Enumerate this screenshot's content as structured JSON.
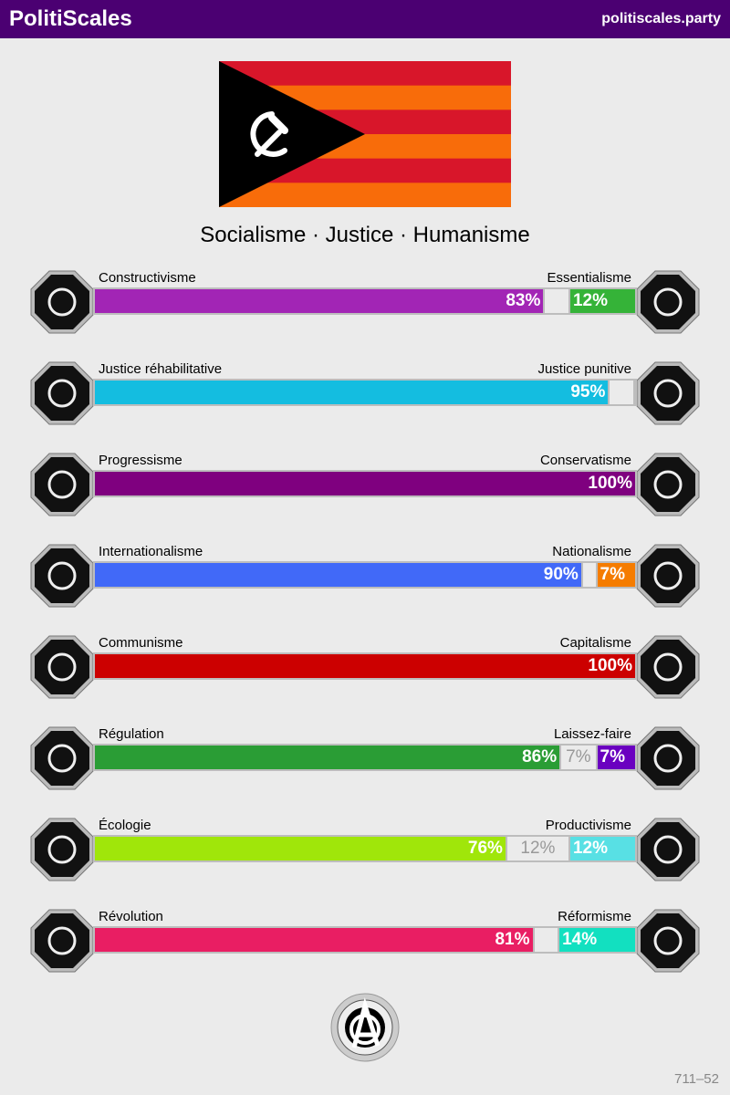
{
  "header": {
    "title": "PolitiScales",
    "url": "politiscales.party"
  },
  "flag": {
    "stripe_colors": [
      "#d8162a",
      "#f86c0a"
    ],
    "triangle_color": "#000000",
    "emblem": "hammer-and-sickle"
  },
  "slogan": "Socialisme · Justice · Humanisme",
  "axes": [
    {
      "left": "Constructivisme",
      "right": "Essentialisme",
      "left_pct": 83,
      "neutral_pct": 5,
      "right_pct": 12,
      "left_label": "83%",
      "neutral_label": "",
      "right_label": "12%",
      "left_color": "#a225b5",
      "right_color": "#35b338",
      "left_icon": "eye-icon",
      "right_icon": "flower-icon"
    },
    {
      "left": "Justice réhabilitative",
      "right": "Justice punitive",
      "left_pct": 95,
      "neutral_pct": 5,
      "right_pct": 0,
      "left_label": "95%",
      "neutral_label": "",
      "right_label": "",
      "left_color": "#14bde0",
      "right_color": "#888888",
      "left_icon": "handshake-icon",
      "right_icon": "prison-bars-icon"
    },
    {
      "left": "Progressisme",
      "right": "Conservatisme",
      "left_pct": 100,
      "neutral_pct": 0,
      "right_pct": 0,
      "left_label": "100%",
      "neutral_label": "",
      "right_label": "",
      "left_color": "#7f007f",
      "right_color": "#f2b705",
      "left_icon": "comet-icon",
      "right_icon": "quill-icon"
    },
    {
      "left": "Internationalisme",
      "right": "Nationalisme",
      "left_pct": 90,
      "neutral_pct": 3,
      "right_pct": 7,
      "left_label": "90%",
      "neutral_label": "",
      "right_label": "7%",
      "left_color": "#4169f8",
      "right_color": "#f57c00",
      "left_icon": "globe-icon",
      "right_icon": "flag-icon"
    },
    {
      "left": "Communisme",
      "right": "Capitalisme",
      "left_pct": 100,
      "neutral_pct": 0,
      "right_pct": 0,
      "left_label": "100%",
      "neutral_label": "",
      "right_label": "",
      "left_color": "#cc0000",
      "right_color": "#f2b705",
      "left_icon": "hammer-sickle-icon",
      "right_icon": "money-bag-icon"
    },
    {
      "left": "Régulation",
      "right": "Laissez-faire",
      "left_pct": 86,
      "neutral_pct": 7,
      "right_pct": 7,
      "left_label": "86%",
      "neutral_label": "7%",
      "right_label": "7%",
      "left_color": "#2a9d35",
      "right_color": "#6a00c0",
      "left_icon": "ruler-icon",
      "right_icon": "butterfly-icon"
    },
    {
      "left": "Écologie",
      "right": "Productivisme",
      "left_pct": 76,
      "neutral_pct": 12,
      "right_pct": 12,
      "left_label": "76%",
      "neutral_label": "12%",
      "right_label": "12%",
      "left_color": "#a0e60a",
      "right_color": "#58e0e4",
      "left_icon": "sprout-icon",
      "right_icon": "gear-icon"
    },
    {
      "left": "Révolution",
      "right": "Réformisme",
      "left_pct": 81,
      "neutral_pct": 5,
      "right_pct": 14,
      "left_label": "81%",
      "neutral_label": "",
      "right_label": "14%",
      "left_color": "#e91e63",
      "right_color": "#12e0c0",
      "left_icon": "fist-icon",
      "right_icon": "parliament-icon"
    }
  ],
  "seal": {
    "text": "ANARCHISME",
    "icon": "anarchy-icon"
  },
  "code": "711–52"
}
